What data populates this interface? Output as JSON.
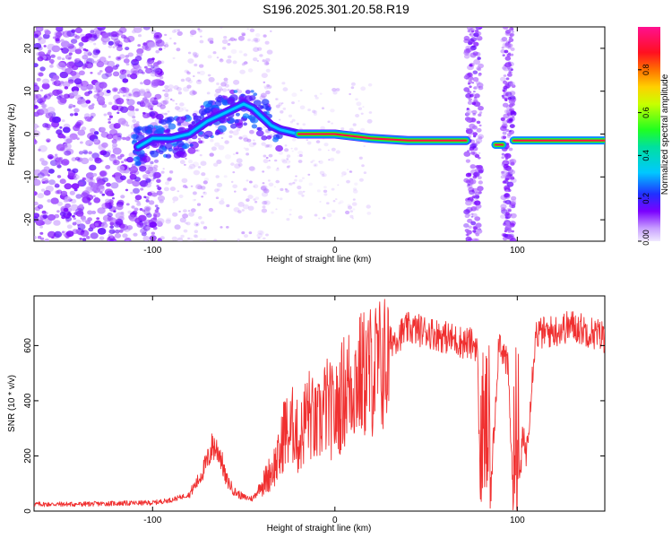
{
  "title": "S196.2025.301.20.58.R19",
  "chart_data": [
    {
      "type": "heatmap",
      "xlabel": "Height of straight line (km)",
      "ylabel": "Frequency (Hz)",
      "xlim": [
        -165,
        148
      ],
      "ylim": [
        -25,
        25
      ],
      "xticks": [
        -100,
        0,
        100
      ],
      "yticks": [
        -20,
        -10,
        0,
        10,
        20
      ],
      "colorbar": {
        "label": "Normalized spectral amplitude",
        "range": [
          0,
          1
        ],
        "ticks": [
          "0.00",
          "0.2",
          "0.4",
          "0.6",
          "0.8"
        ],
        "tick_values": [
          0,
          0.2,
          0.4,
          0.6,
          0.8
        ]
      },
      "ridge": {
        "x": [
          -108,
          -100,
          -90,
          -80,
          -70,
          -60,
          -50,
          -45,
          -40,
          -35,
          -30,
          -20,
          -10,
          0,
          10,
          20,
          40,
          60,
          72
        ],
        "frequency": [
          -3,
          -1,
          -1,
          0,
          3,
          5,
          7,
          6,
          4,
          2,
          1,
          0,
          0,
          0,
          -0.5,
          -1,
          -1.5,
          -1.5,
          -1.5
        ]
      },
      "ridge_segments": [
        {
          "x": [
            88,
            92
          ],
          "frequency": -2.5
        },
        {
          "x": [
            98,
            148
          ],
          "frequency": -1.5
        }
      ],
      "dropout_bands": [
        [
          72,
          80
        ],
        [
          92,
          98
        ]
      ]
    },
    {
      "type": "line",
      "xlabel": "Height of straight line (km)",
      "ylabel": "SNR (10 * v/v)",
      "xlim": [
        -165,
        148
      ],
      "ylim": [
        0,
        780
      ],
      "xticks": [
        -100,
        0,
        100
      ],
      "yticks": [
        0,
        200,
        400,
        600
      ],
      "series": [
        {
          "name": "SNR",
          "color": "#f03030",
          "x": [
            -165,
            -140,
            -120,
            -100,
            -90,
            -80,
            -75,
            -70,
            -67,
            -63,
            -60,
            -55,
            -50,
            -45,
            -40,
            -35,
            -30,
            -28,
            -25,
            -22,
            -20,
            -15,
            -10,
            -5,
            0,
            5,
            10,
            20,
            30,
            40,
            50,
            60,
            70,
            78,
            80,
            85,
            90,
            95,
            98,
            100,
            103,
            105,
            110,
            120,
            130,
            148
          ],
          "y": [
            25,
            25,
            28,
            30,
            40,
            60,
            110,
            180,
            240,
            210,
            120,
            70,
            50,
            45,
            100,
            160,
            220,
            330,
            300,
            360,
            260,
            400,
            330,
            420,
            380,
            480,
            520,
            560,
            600,
            650,
            640,
            620,
            600,
            590,
            0,
            0,
            620,
            500,
            0,
            0,
            250,
            200,
            630,
            640,
            660,
            620
          ]
        }
      ]
    }
  ]
}
